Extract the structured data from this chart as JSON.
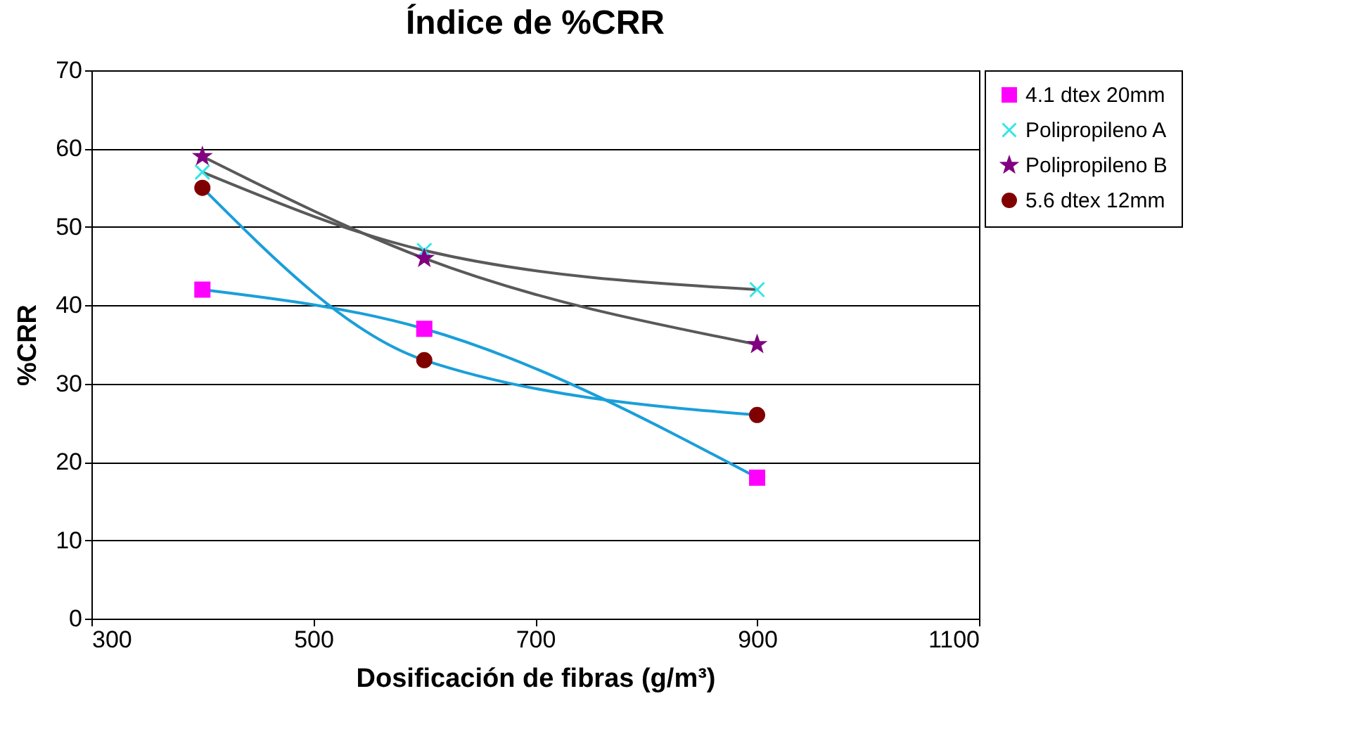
{
  "chart_data": {
    "type": "line",
    "title": "Índice de %CRR",
    "xlabel": "Dosificación de fibras (g/m³)",
    "ylabel": "%CRR",
    "x": [
      400,
      600,
      900
    ],
    "series": [
      {
        "name": "4.1 dtex 20mm",
        "color": "#1a9fd9",
        "colors": [
          "#ff00ff",
          "#ff00ff",
          "#ff00ff"
        ],
        "marker": "square",
        "values": [
          42,
          37,
          18
        ]
      },
      {
        "name": "Polipropileno A",
        "color": "#595959",
        "colors": [
          "#33e6e6",
          "#33e6e6",
          "#33e6e6"
        ],
        "marker": "cross",
        "values": [
          57,
          47,
          42
        ]
      },
      {
        "name": "Polipropileno B",
        "color": "#595959",
        "colors": [
          "#800080",
          "#800080",
          "#800080"
        ],
        "marker": "star",
        "values": [
          59,
          46,
          35
        ]
      },
      {
        "name": "5.6 dtex 12mm",
        "color": "#1a9fd9",
        "colors": [
          "#800000",
          "#800000",
          "#800000"
        ],
        "marker": "circle",
        "values": [
          55,
          33,
          26
        ]
      }
    ],
    "xlim": [
      300,
      1100
    ],
    "xticks": [
      300,
      500,
      700,
      900,
      1100
    ],
    "ylim": [
      0,
      70
    ],
    "yticks": [
      0,
      10,
      20,
      30,
      40,
      50,
      60,
      70
    ],
    "grid": "y",
    "legend": "top right",
    "line_style": "solid"
  }
}
